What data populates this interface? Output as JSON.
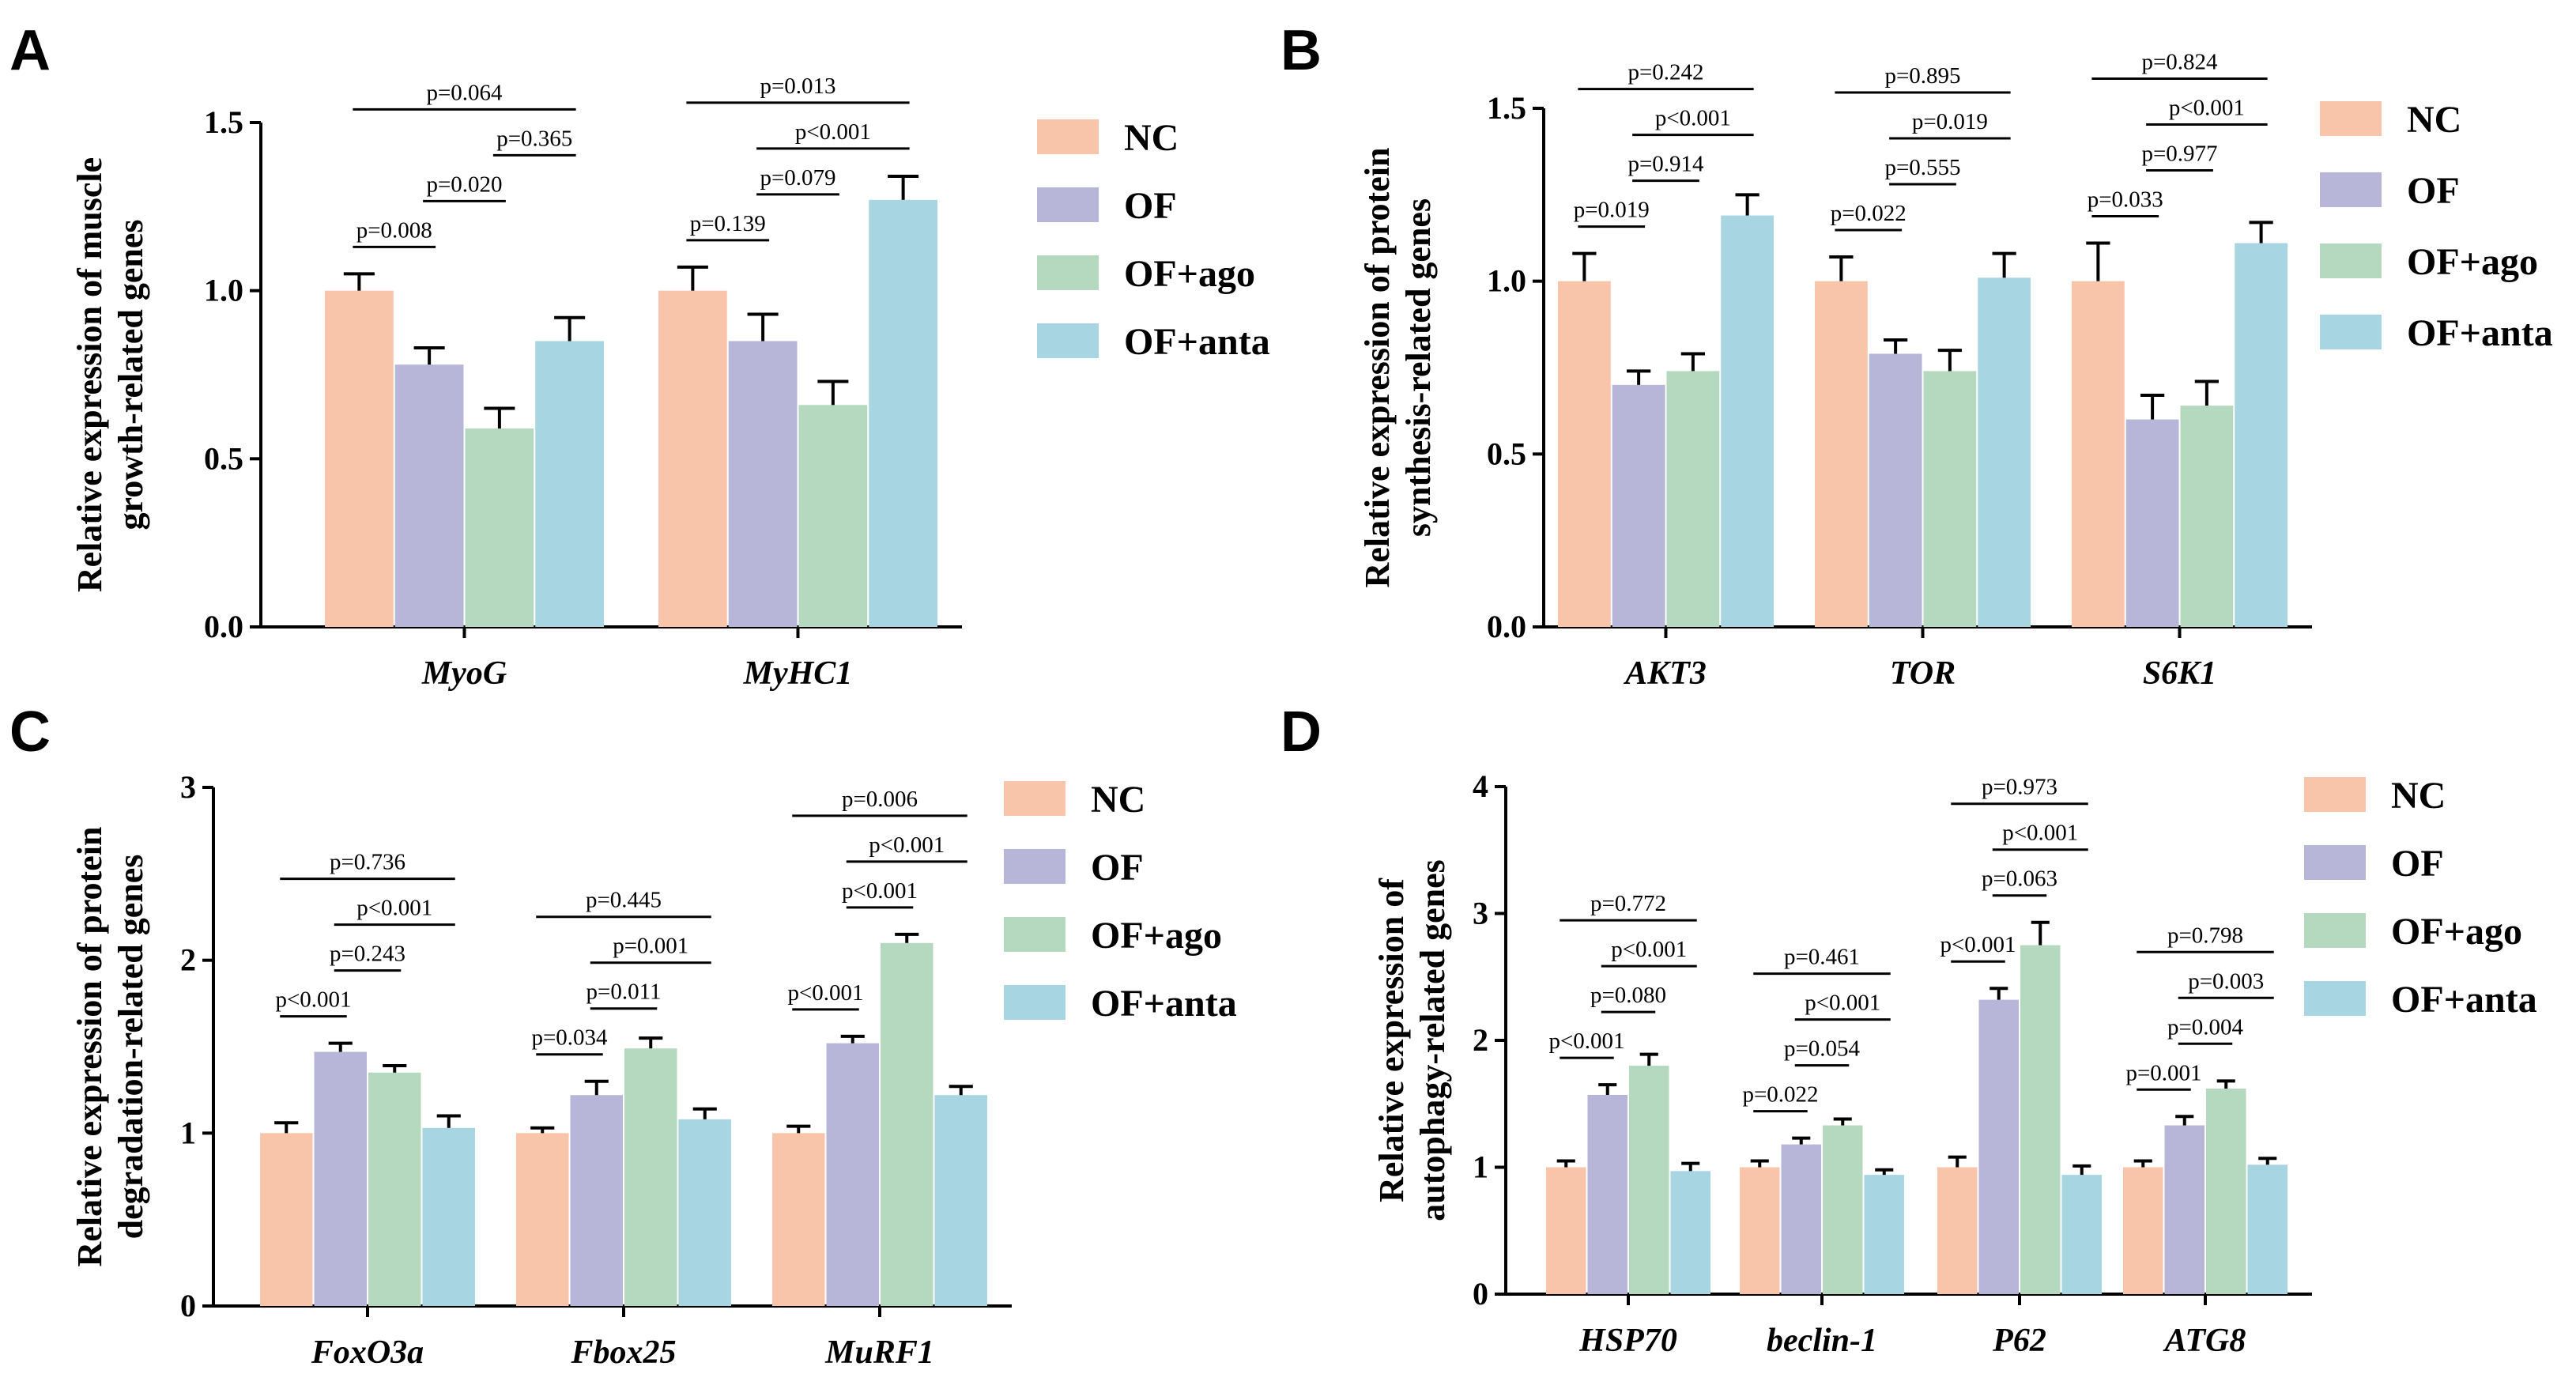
{
  "series_names": [
    "NC",
    "OF",
    "OF+ago",
    "OF+anta"
  ],
  "colors": {
    "NC": "#F8C4AA",
    "OF": "#B7B5D8",
    "OF+ago": "#B5D9BE",
    "OF+anta": "#A8D5E2"
  },
  "chart_data": [
    {
      "panel": "A",
      "type": "bar",
      "ylabel_lines": [
        "Relative expression of muscle",
        "growth-related genes"
      ],
      "ylim": [
        0,
        1.5
      ],
      "yticks": [
        0.0,
        0.5,
        1.0,
        1.5
      ],
      "tick_decimals": 1,
      "categories": [
        "MyoG",
        "MyHC1"
      ],
      "series": [
        {
          "name": "NC",
          "values": [
            1.0,
            1.0
          ],
          "errors": [
            0.05,
            0.07
          ]
        },
        {
          "name": "OF",
          "values": [
            0.78,
            0.85
          ],
          "errors": [
            0.05,
            0.08
          ]
        },
        {
          "name": "OF+ago",
          "values": [
            0.59,
            0.66
          ],
          "errors": [
            0.06,
            0.07
          ]
        },
        {
          "name": "OF+anta",
          "values": [
            0.85,
            1.27
          ],
          "errors": [
            0.07,
            0.07
          ]
        }
      ],
      "comparisons": [
        [
          {
            "from": 0,
            "to": 1,
            "label": "p=0.008"
          },
          {
            "from": 1,
            "to": 2,
            "label": "p=0.020"
          },
          {
            "from": 2,
            "to": 3,
            "label": "p=0.365"
          },
          {
            "from": 0,
            "to": 3,
            "label": "p=0.064"
          }
        ],
        [
          {
            "from": 0,
            "to": 1,
            "label": "p=0.139"
          },
          {
            "from": 1,
            "to": 2,
            "label": "p=0.079"
          },
          {
            "from": 1,
            "to": 3,
            "label": "p<0.001"
          },
          {
            "from": 0,
            "to": 3,
            "label": "p=0.013"
          }
        ]
      ]
    },
    {
      "panel": "B",
      "type": "bar",
      "ylabel_lines": [
        "Relative expression of protein",
        "synthesis-related genes"
      ],
      "ylim": [
        0,
        1.5
      ],
      "yticks": [
        0.0,
        0.5,
        1.0,
        1.5
      ],
      "tick_decimals": 1,
      "categories": [
        "AKT3",
        "TOR",
        "S6K1"
      ],
      "series": [
        {
          "name": "NC",
          "values": [
            1.0,
            1.0,
            1.0
          ],
          "errors": [
            0.08,
            0.07,
            0.11
          ]
        },
        {
          "name": "OF",
          "values": [
            0.7,
            0.79,
            0.6
          ],
          "errors": [
            0.04,
            0.04,
            0.07
          ]
        },
        {
          "name": "OF+ago",
          "values": [
            0.74,
            0.74,
            0.64
          ],
          "errors": [
            0.05,
            0.06,
            0.07
          ]
        },
        {
          "name": "OF+anta",
          "values": [
            1.19,
            1.01,
            1.11
          ],
          "errors": [
            0.06,
            0.07,
            0.06
          ]
        }
      ],
      "comparisons": [
        [
          {
            "from": 0,
            "to": 1,
            "label": "p=0.019"
          },
          {
            "from": 1,
            "to": 2,
            "label": "p=0.914"
          },
          {
            "from": 1,
            "to": 3,
            "label": "p<0.001"
          },
          {
            "from": 0,
            "to": 3,
            "label": "p=0.242"
          }
        ],
        [
          {
            "from": 0,
            "to": 1,
            "label": "p=0.022"
          },
          {
            "from": 1,
            "to": 2,
            "label": "p=0.555"
          },
          {
            "from": 1,
            "to": 3,
            "label": "p=0.019"
          },
          {
            "from": 0,
            "to": 3,
            "label": "p=0.895"
          }
        ],
        [
          {
            "from": 0,
            "to": 1,
            "label": "p=0.033"
          },
          {
            "from": 1,
            "to": 2,
            "label": "p=0.977"
          },
          {
            "from": 1,
            "to": 3,
            "label": "p<0.001"
          },
          {
            "from": 0,
            "to": 3,
            "label": "p=0.824"
          }
        ]
      ]
    },
    {
      "panel": "C",
      "type": "bar",
      "ylabel_lines": [
        "Relative expression of protein",
        "degradation-related genes"
      ],
      "ylim": [
        0,
        3
      ],
      "yticks": [
        0,
        1,
        2,
        3
      ],
      "tick_decimals": 0,
      "categories": [
        "FoxO3a",
        "Fbox25",
        "MuRF1"
      ],
      "series": [
        {
          "name": "NC",
          "values": [
            1.0,
            1.0,
            1.0
          ],
          "errors": [
            0.06,
            0.03,
            0.04
          ]
        },
        {
          "name": "OF",
          "values": [
            1.47,
            1.22,
            1.52
          ],
          "errors": [
            0.05,
            0.08,
            0.04
          ]
        },
        {
          "name": "OF+ago",
          "values": [
            1.35,
            1.49,
            2.1
          ],
          "errors": [
            0.04,
            0.06,
            0.05
          ]
        },
        {
          "name": "OF+anta",
          "values": [
            1.03,
            1.08,
            1.22
          ],
          "errors": [
            0.07,
            0.06,
            0.05
          ]
        }
      ],
      "comparisons": [
        [
          {
            "from": 0,
            "to": 1,
            "label": "p<0.001"
          },
          {
            "from": 1,
            "to": 2,
            "label": "p=0.243"
          },
          {
            "from": 1,
            "to": 3,
            "label": "p<0.001"
          },
          {
            "from": 0,
            "to": 3,
            "label": "p=0.736"
          }
        ],
        [
          {
            "from": 0,
            "to": 1,
            "label": "p=0.034"
          },
          {
            "from": 1,
            "to": 2,
            "label": "p=0.011"
          },
          {
            "from": 1,
            "to": 3,
            "label": "p=0.001"
          },
          {
            "from": 0,
            "to": 3,
            "label": "p=0.445"
          }
        ],
        [
          {
            "from": 0,
            "to": 1,
            "label": "p<0.001"
          },
          {
            "from": 1,
            "to": 2,
            "label": "p<0.001"
          },
          {
            "from": 1,
            "to": 3,
            "label": "p<0.001"
          },
          {
            "from": 0,
            "to": 3,
            "label": "p=0.006"
          }
        ]
      ]
    },
    {
      "panel": "D",
      "type": "bar",
      "ylabel_lines": [
        "Relative expression of",
        "autophagy-related genes"
      ],
      "ylim": [
        0,
        4
      ],
      "yticks": [
        0,
        1,
        2,
        3,
        4
      ],
      "tick_decimals": 0,
      "categories": [
        "HSP70",
        "beclin-1",
        "P62",
        "ATG8"
      ],
      "series": [
        {
          "name": "NC",
          "values": [
            1.0,
            1.0,
            1.0,
            1.0
          ],
          "errors": [
            0.05,
            0.05,
            0.08,
            0.05
          ]
        },
        {
          "name": "OF",
          "values": [
            1.57,
            1.18,
            2.32,
            1.33
          ],
          "errors": [
            0.08,
            0.05,
            0.09,
            0.07
          ]
        },
        {
          "name": "OF+ago",
          "values": [
            1.8,
            1.33,
            2.75,
            1.62
          ],
          "errors": [
            0.09,
            0.05,
            0.18,
            0.06
          ]
        },
        {
          "name": "OF+anta",
          "values": [
            0.97,
            0.94,
            0.94,
            1.02
          ],
          "errors": [
            0.06,
            0.04,
            0.07,
            0.05
          ]
        }
      ],
      "comparisons": [
        [
          {
            "from": 0,
            "to": 1,
            "label": "p<0.001"
          },
          {
            "from": 1,
            "to": 2,
            "label": "p=0.080"
          },
          {
            "from": 1,
            "to": 3,
            "label": "p<0.001"
          },
          {
            "from": 0,
            "to": 3,
            "label": "p=0.772"
          }
        ],
        [
          {
            "from": 0,
            "to": 1,
            "label": "p=0.022"
          },
          {
            "from": 1,
            "to": 2,
            "label": "p=0.054"
          },
          {
            "from": 1,
            "to": 3,
            "label": "p<0.001"
          },
          {
            "from": 0,
            "to": 3,
            "label": "p=0.461"
          }
        ],
        [
          {
            "from": 0,
            "to": 1,
            "label": "p<0.001"
          },
          {
            "from": 1,
            "to": 2,
            "label": "p=0.063"
          },
          {
            "from": 1,
            "to": 3,
            "label": "p<0.001"
          },
          {
            "from": 0,
            "to": 3,
            "label": "p=0.973"
          }
        ],
        [
          {
            "from": 0,
            "to": 1,
            "label": "p=0.001"
          },
          {
            "from": 1,
            "to": 2,
            "label": "p=0.004"
          },
          {
            "from": 1,
            "to": 3,
            "label": "p=0.003"
          },
          {
            "from": 0,
            "to": 3,
            "label": "p=0.798"
          }
        ]
      ]
    }
  ]
}
